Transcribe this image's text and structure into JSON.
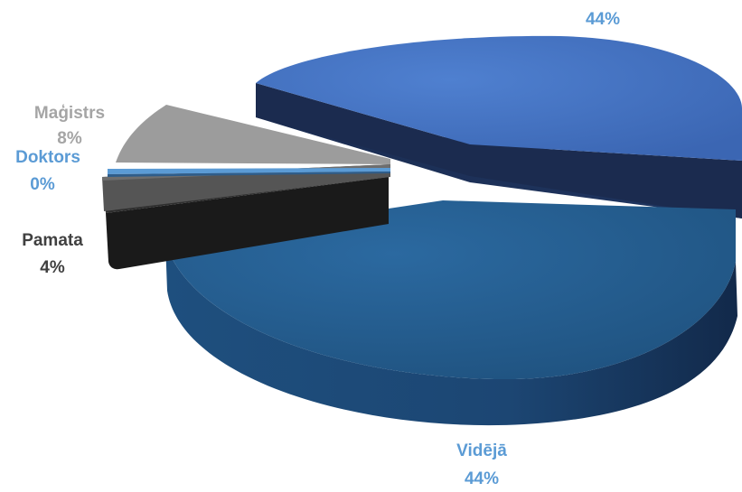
{
  "chart_data": {
    "type": "pie",
    "variant": "3d-exploded",
    "title": "",
    "legend": "none",
    "slices": [
      {
        "name": "",
        "value": 44,
        "label": "44%",
        "color": "#4472c4",
        "label_color": "#5b9bd5"
      },
      {
        "name": "Vidējā",
        "value": 44,
        "label": "44%",
        "color": "#255e91",
        "label_color": "#5b9bd5"
      },
      {
        "name": "Pamata",
        "value": 4,
        "label": "4%",
        "color": "#262626",
        "label_color": "#404040"
      },
      {
        "name": "Doktors",
        "value": 0,
        "label": "0%",
        "color": "#5b9bd5",
        "label_color": "#5b9bd5"
      },
      {
        "name": "Maģistrs",
        "value": 8,
        "label": "8%",
        "color": "#a5a5a5",
        "label_color": "#a5a5a5"
      }
    ]
  }
}
